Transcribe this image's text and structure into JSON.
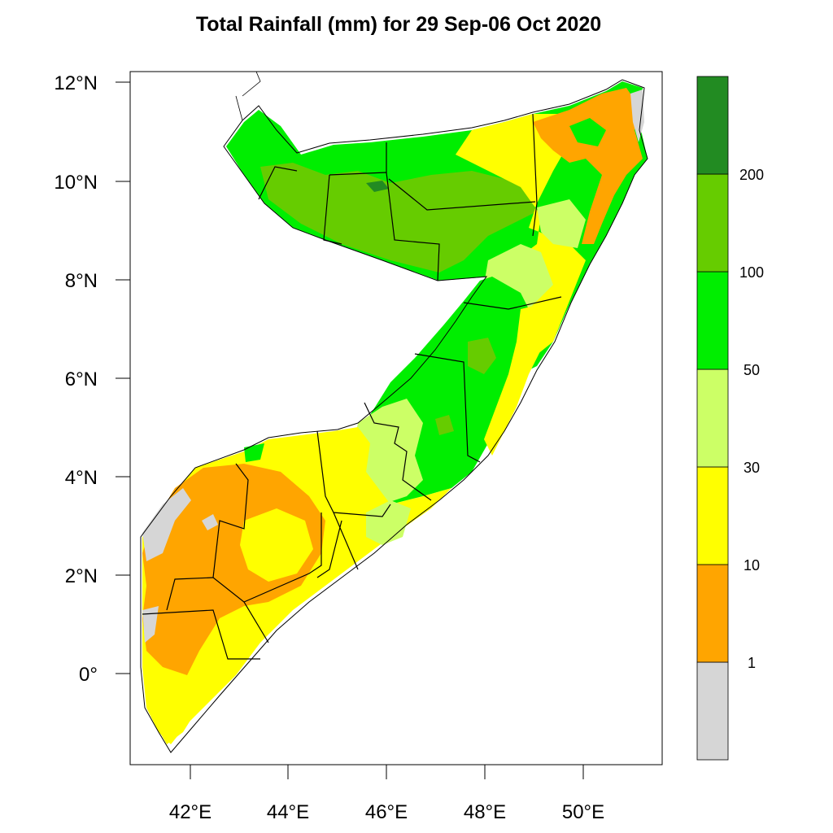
{
  "title": "Total Rainfall (mm) for 29 Sep-06 Oct 2020",
  "axes": {
    "x_ticks": [
      "42°E",
      "44°E",
      "46°E",
      "48°E",
      "50°E"
    ],
    "y_ticks": [
      "12°N",
      "10°N",
      "8°N",
      "6°N",
      "4°N",
      "2°N",
      "0°"
    ]
  },
  "legend": {
    "bins": [
      {
        "color": "#d6d6d6"
      },
      {
        "color": "#ffa500"
      },
      {
        "color": "#ffff00"
      },
      {
        "color": "#ccff66"
      },
      {
        "color": "#00ee00"
      },
      {
        "color": "#66cc00"
      },
      {
        "color": "#228b22"
      }
    ],
    "labels": [
      "1",
      "10",
      "30",
      "50",
      "100",
      "200"
    ]
  }
}
